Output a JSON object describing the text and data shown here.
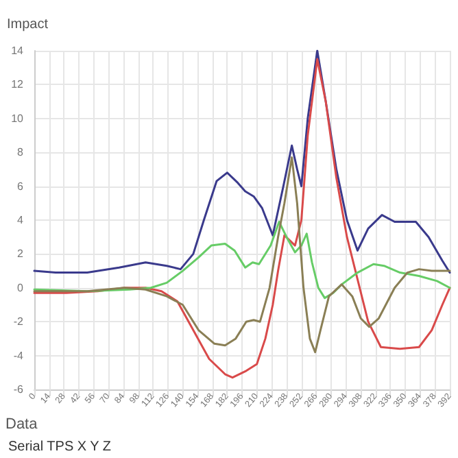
{
  "chart_data": {
    "type": "line",
    "ylabel": "Impact",
    "annotations": [
      "Data",
      "Serial TPS X Y Z"
    ],
    "xlim": [
      0,
      392
    ],
    "xticks": [
      0,
      14,
      28,
      42,
      56,
      70,
      84,
      98,
      112,
      126,
      140,
      154,
      168,
      182,
      196,
      210,
      224,
      238,
      252,
      266,
      280,
      294,
      308,
      322,
      336,
      350,
      364,
      378,
      392
    ],
    "ylim": [
      -6,
      14
    ],
    "yticks": [
      -6,
      -4,
      -2,
      0,
      2,
      4,
      6,
      8,
      10,
      12,
      14
    ],
    "grid": true,
    "marker": "none",
    "line_style": "solid",
    "series": [
      {
        "color": "#3a3a8c",
        "x": [
          0,
          20,
          50,
          80,
          105,
          125,
          138,
          150,
          160,
          172,
          182,
          192,
          199,
          207,
          215,
          225,
          235,
          243,
          248,
          252,
          258,
          267,
          275,
          285,
          295,
          305,
          315,
          328,
          340,
          360,
          372,
          385,
          392
        ],
        "values": [
          1,
          0.9,
          0.9,
          1.2,
          1.5,
          1.3,
          1.1,
          2,
          4,
          6.3,
          6.8,
          6.2,
          5.7,
          5.4,
          4.7,
          3.1,
          6,
          8.4,
          7,
          6,
          10,
          14,
          11,
          7,
          4,
          2.2,
          3.5,
          4.3,
          3.9,
          3.9,
          3,
          1.6,
          0.9
        ]
      },
      {
        "color": "#d94a4a",
        "x": [
          0,
          30,
          60,
          85,
          105,
          120,
          135,
          150,
          165,
          180,
          187,
          200,
          210,
          218,
          225,
          230,
          236,
          241,
          246,
          252,
          258,
          267,
          275,
          285,
          295,
          307,
          315,
          327,
          345,
          363,
          375,
          385,
          392
        ],
        "values": [
          -0.3,
          -0.3,
          -0.2,
          0,
          0,
          -0.2,
          -0.8,
          -2.5,
          -4.2,
          -5.1,
          -5.3,
          -4.9,
          -4.5,
          -3,
          -1,
          1,
          3.1,
          2.8,
          2.5,
          4,
          9,
          13.5,
          11,
          6.5,
          3,
          0,
          -2,
          -3.5,
          -3.6,
          -3.5,
          -2.5,
          -1,
          0
        ]
      },
      {
        "color": "#66cc66",
        "x": [
          0,
          50,
          90,
          110,
          125,
          140,
          155,
          167,
          180,
          189,
          199,
          206,
          212,
          223,
          231,
          238,
          246,
          252,
          257,
          262,
          268,
          274,
          282,
          290,
          305,
          320,
          330,
          345,
          363,
          380,
          392
        ],
        "values": [
          -0.1,
          -0.2,
          -0.1,
          0,
          0.3,
          1,
          1.8,
          2.5,
          2.6,
          2.2,
          1.2,
          1.5,
          1.4,
          2.5,
          3.9,
          3,
          2.1,
          2.5,
          3.2,
          1.5,
          0,
          -0.6,
          -0.3,
          0.2,
          0.9,
          1.4,
          1.3,
          0.9,
          0.7,
          0.4,
          0
        ]
      },
      {
        "color": "#8a7f55",
        "x": [
          0,
          50,
          85,
          105,
          125,
          140,
          155,
          170,
          180,
          190,
          200,
          207,
          213,
          222,
          230,
          236,
          243,
          248,
          254,
          260,
          265,
          270,
          278,
          290,
          300,
          308,
          316,
          325,
          340,
          352,
          363,
          375,
          392
        ],
        "values": [
          -0.2,
          -0.2,
          0,
          -0.1,
          -0.5,
          -1,
          -2.5,
          -3.3,
          -3.4,
          -3,
          -2,
          -1.9,
          -2,
          0,
          3,
          5,
          7.7,
          5,
          0,
          -3,
          -3.8,
          -2.5,
          -0.5,
          0.2,
          -0.5,
          -1.8,
          -2.3,
          -1.8,
          0,
          0.9,
          1.1,
          1,
          1
        ]
      }
    ]
  }
}
